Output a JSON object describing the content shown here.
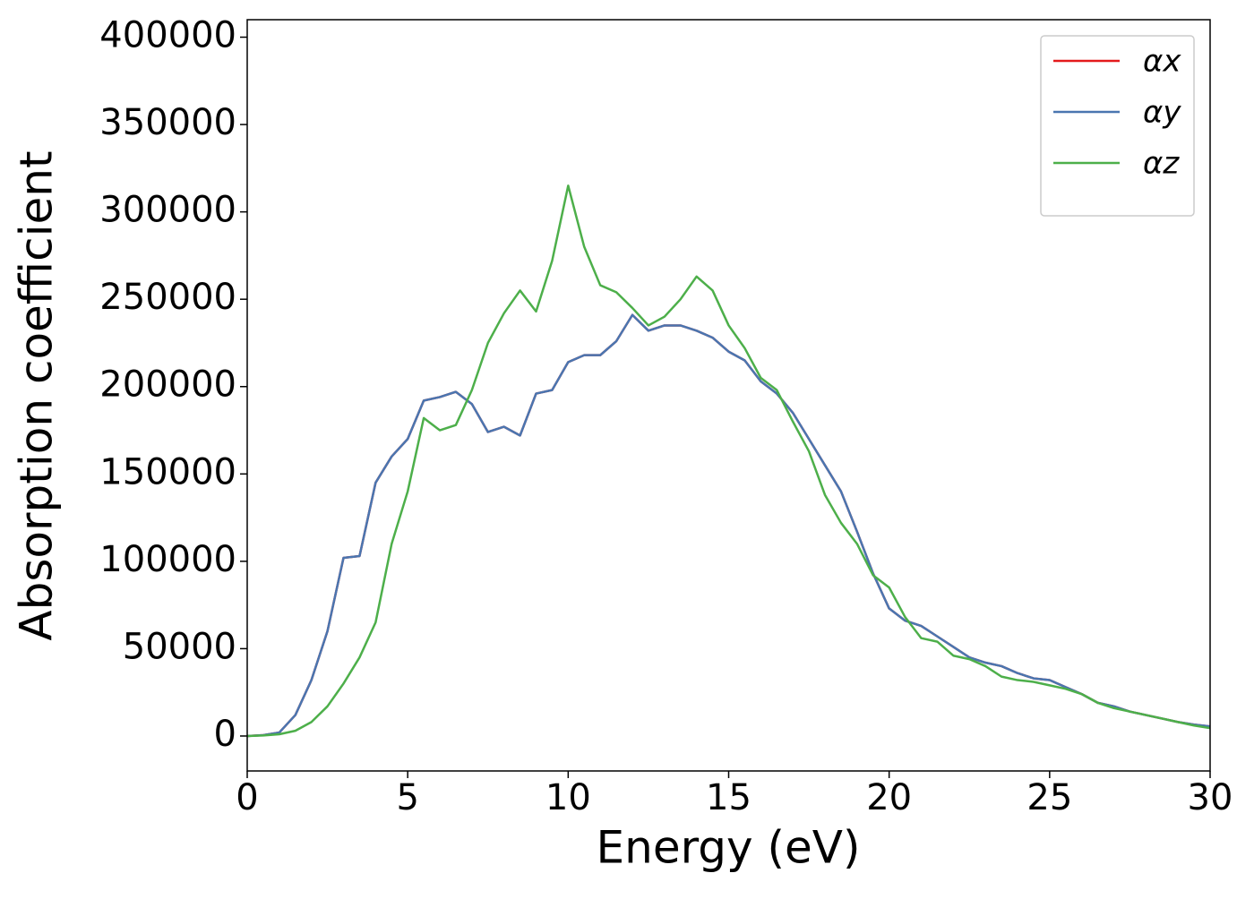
{
  "chart_data": {
    "type": "line",
    "xlabel": "Energy (eV)",
    "ylabel": "Absorption coefficient",
    "x": [
      0,
      0.5,
      1,
      1.5,
      2,
      2.5,
      3,
      3.5,
      4,
      4.5,
      5,
      5.5,
      6,
      6.5,
      7,
      7.5,
      8,
      8.5,
      9,
      9.5,
      10,
      10.5,
      11,
      11.5,
      12,
      12.5,
      13,
      13.5,
      14,
      14.5,
      15,
      15.5,
      16,
      16.5,
      17,
      17.5,
      18,
      18.5,
      19,
      19.5,
      20,
      20.5,
      21,
      21.5,
      22,
      22.5,
      23,
      23.5,
      24,
      24.5,
      25,
      25.5,
      26,
      26.5,
      27,
      27.5,
      28,
      28.5,
      29,
      29.5,
      30
    ],
    "series": [
      {
        "name": "αx",
        "color": "#e41a1c",
        "values": [
          0,
          500,
          2000,
          12000,
          32000,
          60000,
          102000,
          103000,
          145000,
          160000,
          170000,
          192000,
          194000,
          197000,
          190000,
          174000,
          177000,
          172000,
          196000,
          198000,
          214000,
          218000,
          218000,
          226000,
          241000,
          232000,
          235000,
          235000,
          232000,
          228000,
          220000,
          215000,
          203000,
          196000,
          185000,
          170000,
          155000,
          140000,
          117000,
          93000,
          73000,
          66000,
          63000,
          57000,
          51000,
          45000,
          42000,
          40000,
          36000,
          33000,
          32000,
          28000,
          24000,
          19000,
          17000,
          14000,
          12000,
          10000,
          8000,
          6500,
          5500
        ]
      },
      {
        "name": "αy",
        "color": "#4a76b0",
        "values": [
          0,
          500,
          2000,
          12000,
          32000,
          60000,
          102000,
          103000,
          145000,
          160000,
          170000,
          192000,
          194000,
          197000,
          190000,
          174000,
          177000,
          172000,
          196000,
          198000,
          214000,
          218000,
          218000,
          226000,
          241000,
          232000,
          235000,
          235000,
          232000,
          228000,
          220000,
          215000,
          203000,
          196000,
          185000,
          170000,
          155000,
          140000,
          117000,
          93000,
          73000,
          66000,
          63000,
          57000,
          51000,
          45000,
          42000,
          40000,
          36000,
          33000,
          32000,
          28000,
          24000,
          19000,
          17000,
          14000,
          12000,
          10000,
          8000,
          6500,
          5500
        ]
      },
      {
        "name": "αz",
        "color": "#4daf4a",
        "values": [
          0,
          300,
          1000,
          3000,
          8000,
          17000,
          30000,
          45000,
          65000,
          110000,
          140000,
          182000,
          175000,
          178000,
          198000,
          225000,
          242000,
          255000,
          243000,
          272000,
          315000,
          280000,
          258000,
          254000,
          245000,
          235000,
          240000,
          250000,
          263000,
          255000,
          235000,
          222000,
          205000,
          198000,
          180000,
          163000,
          138000,
          122000,
          110000,
          92000,
          85000,
          68000,
          56000,
          54000,
          46000,
          44000,
          40000,
          34000,
          32000,
          31000,
          29000,
          27000,
          24000,
          19000,
          16000,
          14000,
          12000,
          10000,
          8000,
          6000,
          4500
        ]
      }
    ],
    "xlim": [
      0,
      30
    ],
    "xticks": [
      0,
      5,
      10,
      15,
      20,
      25,
      30
    ],
    "ylim": [
      -20000,
      410000
    ],
    "yticks": [
      0,
      50000,
      100000,
      150000,
      200000,
      250000,
      300000,
      350000,
      400000
    ],
    "legend": "upper right"
  }
}
